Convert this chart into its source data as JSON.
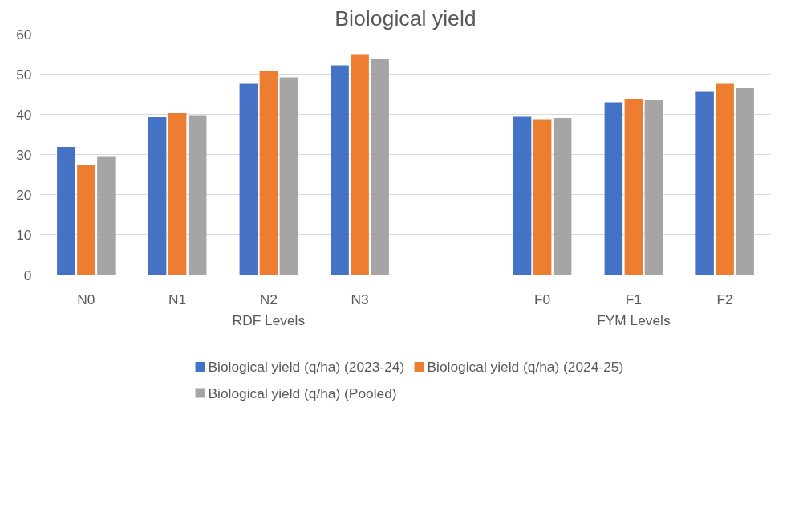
{
  "chart_data": {
    "type": "bar",
    "title": "Biological yield",
    "categories": [
      "N0",
      "N1",
      "N2",
      "N3",
      null,
      "F0",
      "F1",
      "F2"
    ],
    "series": [
      {
        "name": "Biological yield (q/ha) (2023-24)",
        "color": "#4472c4",
        "values": [
          31.9,
          39.3,
          47.6,
          52.2,
          null,
          39.4,
          43.0,
          45.8
        ]
      },
      {
        "name": "Biological yield (q/ha) (2024-25)",
        "color": "#ed7d31",
        "values": [
          27.4,
          40.3,
          50.9,
          55.0,
          null,
          38.8,
          43.9,
          47.6
        ]
      },
      {
        "name": "Biological yield (q/ha) (Pooled)",
        "color": "#a5a5a5",
        "values": [
          29.6,
          39.8,
          49.2,
          53.7,
          null,
          39.1,
          43.5,
          46.7
        ]
      }
    ],
    "annotations": [
      "RDF Levels",
      "FYM Levels"
    ],
    "ylim": [
      0,
      60
    ],
    "yticks": [
      0,
      10,
      20,
      30,
      40,
      50,
      60
    ],
    "grid": "y",
    "legend": "bottom"
  }
}
